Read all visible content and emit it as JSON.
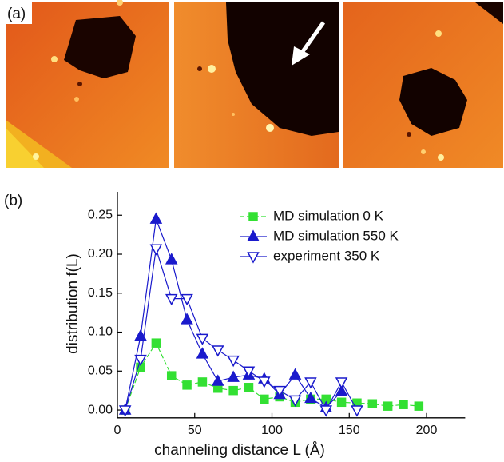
{
  "panel_labels": [
    "(a)",
    "(b)"
  ],
  "chart_data": {
    "type": "line",
    "xlabel": "channeling distance L (Å)",
    "ylabel": "distribution f(L)",
    "xlim": [
      0,
      225
    ],
    "ylim": [
      -0.01,
      0.28
    ],
    "xticks": [
      0,
      50,
      100,
      150,
      200
    ],
    "yticks": [
      {
        "value": 0,
        "label": "0.00"
      },
      0.05,
      {
        "value": 0.1,
        "label": "0.10"
      },
      0.15,
      {
        "value": 0.2,
        "label": "0.20"
      },
      0.25
    ],
    "legend": "upper right",
    "series": [
      {
        "name": "MD simulation 0 K",
        "color": "#33e033",
        "marker": "square",
        "filled": true,
        "linestyle": "dashed",
        "x": [
          5,
          15,
          25,
          35,
          45,
          55,
          65,
          75,
          85,
          95,
          105,
          115,
          125,
          135,
          145,
          155,
          165,
          175,
          185,
          195
        ],
        "values": [
          0,
          0.055,
          0.086,
          0.044,
          0.032,
          0.036,
          0.028,
          0.025,
          0.029,
          0.014,
          0.017,
          0.01,
          0.014,
          0.014,
          0.01,
          0.009,
          0.008,
          0.005,
          0.007,
          0.005
        ]
      },
      {
        "name": "MD simulation 550 K",
        "color": "#1a1acc",
        "marker": "triangle-up",
        "filled": true,
        "linestyle": "solid",
        "x": [
          5,
          15,
          25,
          35,
          45,
          55,
          65,
          75,
          85,
          95,
          105,
          115,
          125,
          135,
          145
        ],
        "values": [
          0,
          0.095,
          0.245,
          0.193,
          0.116,
          0.072,
          0.037,
          0.042,
          0.045,
          0.04,
          0.02,
          0.045,
          0.015,
          0.003,
          0.024
        ]
      },
      {
        "name": "experiment 350 K",
        "color": "#1a1acc",
        "marker": "triangle-down",
        "filled": false,
        "linestyle": "solid",
        "x": [
          5,
          15,
          25,
          35,
          45,
          55,
          65,
          75,
          85,
          95,
          105,
          115,
          125,
          135,
          145,
          155
        ],
        "values": [
          0,
          0.065,
          0.207,
          0.143,
          0.143,
          0.092,
          0.077,
          0.064,
          0.05,
          0.037,
          0.025,
          0.013,
          0.036,
          0,
          0.036,
          0
        ]
      }
    ]
  }
}
